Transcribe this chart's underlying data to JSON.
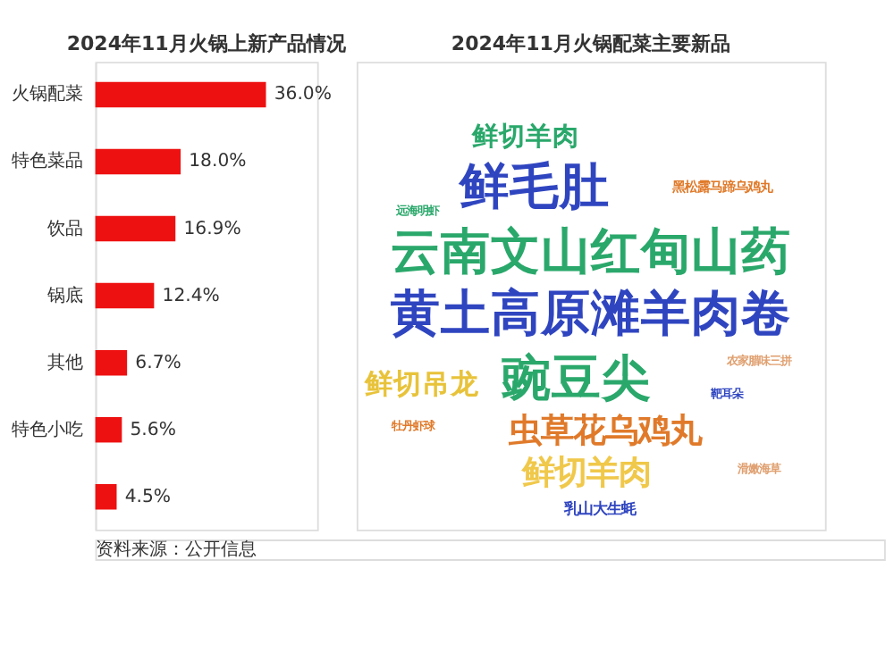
{
  "chart_data": [
    {
      "type": "bar",
      "orientation": "horizontal",
      "title": "2024年11月火锅上新产品情况",
      "categories": [
        "火锅配菜",
        "特色菜品",
        "饮品",
        "锅底",
        "其他",
        "特色小吃",
        null
      ],
      "values": [
        36.0,
        18.0,
        16.9,
        12.4,
        6.7,
        5.6,
        4.5
      ],
      "color": "#ee1111",
      "value_labels": [
        "36.0%",
        "18.0%",
        "16.9%",
        "12.4%",
        "6.7%",
        "5.6%",
        "4.5%"
      ],
      "annotations": [
        "资料来源：公开信息"
      ]
    },
    {
      "type": "other",
      "title": "2024年11月火锅配菜主要新品",
      "annotations": [
        "鲜切羊肉",
        "鲜毛肚",
        "云南文山红甸山药",
        "黄土高原滩羊肉卷",
        "鲜切吊龙",
        "豌豆尖",
        "虫草花乌鸡丸",
        "鲜切羊肉",
        "乳山大生蚝",
        "黑松露马蹄乌鸡丸",
        "远海明虾",
        "农家腊味三拼",
        "靶耳朵",
        "牡丹虾球",
        "滑嫩海草"
      ]
    }
  ]
}
